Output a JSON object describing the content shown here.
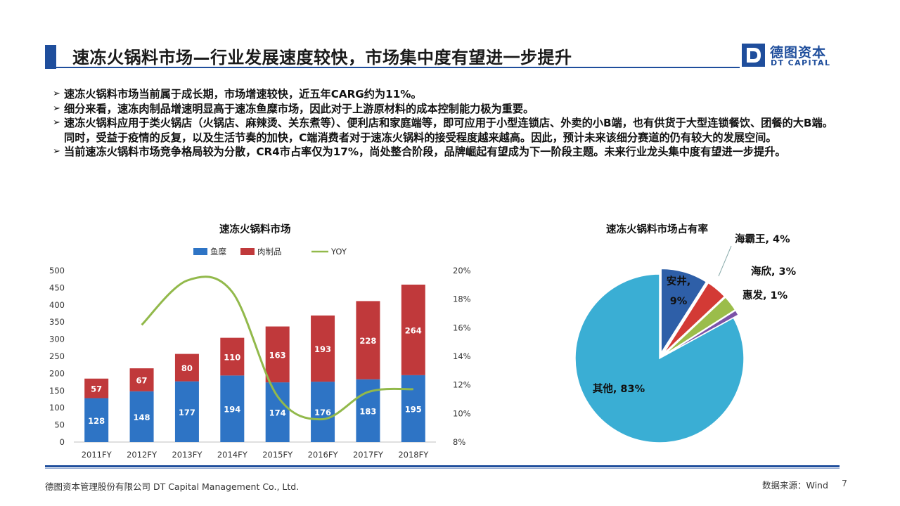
{
  "header": {
    "title": "速冻火锅料市场—行业发展速度较快，市场集中度有望进一步提升",
    "logo_cn": "德图资本",
    "logo_en": "DT CAPITAL",
    "logo_mark": "D"
  },
  "bullets": [
    "速冻火锅料市场当前属于成长期，市场增速较快，近五年CARG约为11%。",
    "细分来看，速冻肉制品增速明显高于速冻鱼糜市场，因此对于上游原材料的成本控制能力极为重要。",
    "速冻火锅料应用于类火锅店（火锅店、麻辣烫、关东煮等）、便利店和家庭端等，即可应用于小型连锁店、外卖的小B端，也有供货于大型连锁餐饮、团餐的大B端。同时，受益于疫情的反复，以及生活节奏的加快，C端消费者对于速冻火锅料的接受程度越来越高。因此，预计未来该细分赛道的仍有较大的发展空间。",
    "当前速冻火锅料市场竞争格局较为分散，CR4市占率仅为17%，尚处整合阶段，品牌崛起有望成为下一阶段主题。未来行业龙头集中度有望进一步提升。"
  ],
  "bullet_marker": "➢",
  "chart_data": [
    {
      "type": "bar",
      "stacked": true,
      "title": "速冻火锅料市场",
      "categories": [
        "2011FY",
        "2012FY",
        "2013FY",
        "2014FY",
        "2015FY",
        "2016FY",
        "2017FY",
        "2018FY"
      ],
      "series": [
        {
          "name": "鱼糜",
          "values": [
            128,
            148,
            177,
            194,
            174,
            176,
            183,
            195
          ],
          "color": "#2e74c5",
          "axis": "left"
        },
        {
          "name": "肉制品",
          "values": [
            57,
            67,
            80,
            110,
            163,
            193,
            228,
            264
          ],
          "color": "#c0393b",
          "axis": "left"
        },
        {
          "name": "YOY",
          "type": "line",
          "smooth": true,
          "values": [
            null,
            16.2,
            19.3,
            18.5,
            11.2,
            9.6,
            11.5,
            11.7
          ],
          "color": "#92b94b",
          "axis": "right",
          "unit": "%"
        }
      ],
      "ylim": [
        0,
        500
      ],
      "yticks": [
        0,
        50,
        100,
        150,
        200,
        250,
        300,
        350,
        400,
        450,
        500
      ],
      "y2lim": [
        8,
        20
      ],
      "y2ticks": [
        "8%",
        "10%",
        "12%",
        "14%",
        "16%",
        "18%",
        "20%"
      ],
      "legend": "top",
      "grid": false
    },
    {
      "type": "pie",
      "title": "速冻火锅料市场占有率",
      "slices": [
        {
          "label": "安井",
          "value": 9,
          "color": "#2e5fa8",
          "text": "安井,\n9%"
        },
        {
          "label": "海霸王",
          "value": 4,
          "color": "#d33a35",
          "text": "海霸王, 4%"
        },
        {
          "label": "海欣",
          "value": 3,
          "color": "#9bbd4a",
          "text": "海欣, 3%"
        },
        {
          "label": "惠发",
          "value": 1,
          "color": "#7b52a8",
          "text": "惠发, 1%"
        },
        {
          "label": "其他",
          "value": 83,
          "color": "#3aaed4",
          "text": "其他, 83%"
        }
      ]
    }
  ],
  "footer": {
    "company": "德图资本管理股份有限公司  DT Capital Management  Co., Ltd.",
    "source": "数据来源：Wind",
    "page": "7"
  }
}
